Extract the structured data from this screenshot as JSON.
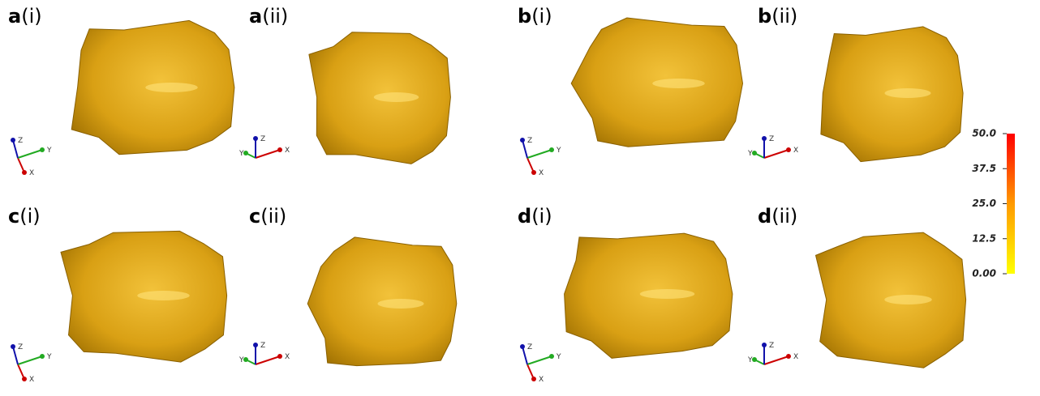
{
  "panels": [
    {
      "letter": "a",
      "sub": "(i)",
      "axes": [
        "X",
        "Y",
        "Z"
      ]
    },
    {
      "letter": "a",
      "sub": "(ii)",
      "axes": [
        "X",
        "Y",
        "Z"
      ]
    },
    {
      "letter": "b",
      "sub": "(i)",
      "axes": [
        "X",
        "Y",
        "Z"
      ]
    },
    {
      "letter": "b",
      "sub": "(ii)",
      "axes": [
        "X",
        "Y",
        "Z"
      ]
    },
    {
      "letter": "c",
      "sub": "(i)",
      "axes": [
        "X",
        "Y",
        "Z"
      ]
    },
    {
      "letter": "c",
      "sub": "(ii)",
      "axes": [
        "X",
        "Y",
        "Z"
      ]
    },
    {
      "letter": "d",
      "sub": "(i)",
      "axes": [
        "X",
        "Y",
        "Z"
      ]
    },
    {
      "letter": "d",
      "sub": "(ii)",
      "axes": [
        "X",
        "Y",
        "Z"
      ]
    }
  ],
  "colorbar": {
    "range": [
      0,
      50
    ],
    "ticks": [
      {
        "value": 50,
        "label": "50.0"
      },
      37.5,
      {
        "value": 25,
        "label": "25.0"
      },
      12.5,
      {
        "value": 0,
        "label": "0.00"
      }
    ]
  }
}
